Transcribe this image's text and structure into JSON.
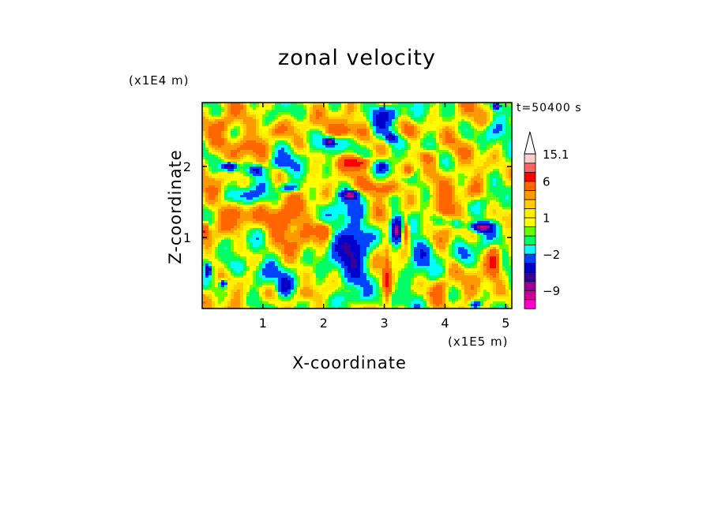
{
  "chart_data": {
    "type": "heatmap",
    "title": "zonal velocity",
    "xlabel": "X-coordinate",
    "ylabel": "Z-coordinate",
    "x_scale_label": "(x1E5 m)",
    "y_scale_label": "(x1E4 m)",
    "time_label": "t=50400 s",
    "xlim": [
      0,
      5.1
    ],
    "ylim": [
      0,
      2.9
    ],
    "x_ticks": [
      1,
      2,
      3,
      4,
      5
    ],
    "x_tick_labels": [
      "1",
      "2",
      "3",
      "4",
      "5"
    ],
    "y_ticks": [
      1,
      2
    ],
    "y_tick_labels": [
      "1",
      "2"
    ],
    "colorbar": {
      "levels": [
        -12,
        -10.5,
        -9,
        -7.5,
        -6,
        -4,
        -2,
        -1,
        0,
        0.5,
        1,
        1.5,
        2,
        3,
        6,
        9,
        12,
        15.1
      ],
      "colors": [
        "#ff00cc",
        "#cc0099",
        "#990099",
        "#330099",
        "#0000cc",
        "#0044ff",
        "#00ffff",
        "#00ff66",
        "#66ff00",
        "#ffff00",
        "#ffee00",
        "#ffcc00",
        "#ff9900",
        "#ff6600",
        "#ff0000",
        "#ff6666",
        "#ffcccc"
      ],
      "labels": [
        {
          "value": 15.1,
          "text": "15.1"
        },
        {
          "value": 6,
          "text": "6"
        },
        {
          "value": 1,
          "text": "1"
        },
        {
          "value": -2,
          "text": "−2"
        },
        {
          "value": -9,
          "text": "−9"
        }
      ],
      "extend": "max"
    },
    "features": [
      {
        "x": 2.5,
        "z": 0.8,
        "amp": -6,
        "sx": 0.28,
        "sz": 0.6
      },
      {
        "x": 3.2,
        "z": 1.1,
        "amp": -10,
        "sx": 0.1,
        "sz": 0.18
      },
      {
        "x": 3.35,
        "z": 1.1,
        "amp": 8,
        "sx": 0.07,
        "sz": 0.15
      },
      {
        "x": 3.05,
        "z": 0.4,
        "amp": 5,
        "sx": 0.06,
        "sz": 0.35
      },
      {
        "x": 3.0,
        "z": 1.7,
        "amp": 4,
        "sx": 0.35,
        "sz": 0.12
      },
      {
        "x": 2.45,
        "z": 1.6,
        "amp": -9,
        "sx": 0.13,
        "sz": 0.06
      },
      {
        "x": 2.55,
        "z": 2.05,
        "amp": 7,
        "sx": 0.22,
        "sz": 0.08
      },
      {
        "x": 2.1,
        "z": 2.35,
        "amp": -8,
        "sx": 0.08,
        "sz": 0.06
      },
      {
        "x": 2.2,
        "z": 2.3,
        "amp": -3,
        "sx": 0.3,
        "sz": 0.15
      },
      {
        "x": 2.3,
        "z": 2.5,
        "amp": 3,
        "sx": 0.25,
        "sz": 0.1
      },
      {
        "x": 2.9,
        "z": 2.65,
        "amp": -3,
        "sx": 0.15,
        "sz": 0.25
      },
      {
        "x": 3.1,
        "z": 2.4,
        "amp": -6,
        "sx": 0.08,
        "sz": 0.06
      },
      {
        "x": 3.1,
        "z": 2.75,
        "amp": -4,
        "sx": 0.2,
        "sz": 0.12
      },
      {
        "x": 2.95,
        "z": 2.0,
        "amp": -5,
        "sx": 0.12,
        "sz": 0.08
      },
      {
        "x": 3.4,
        "z": 1.95,
        "amp": 5,
        "sx": 0.1,
        "sz": 0.1
      },
      {
        "x": 0.45,
        "z": 2.0,
        "amp": -9,
        "sx": 0.12,
        "sz": 0.06
      },
      {
        "x": 0.9,
        "z": 1.95,
        "amp": -6,
        "sx": 0.12,
        "sz": 0.07
      },
      {
        "x": 1.45,
        "z": 1.7,
        "amp": -5,
        "sx": 0.15,
        "sz": 0.06
      },
      {
        "x": 1.3,
        "z": 2.05,
        "amp": -3,
        "sx": 0.2,
        "sz": 0.1
      },
      {
        "x": 0.7,
        "z": 1.6,
        "amp": -3,
        "sx": 0.25,
        "sz": 0.1
      },
      {
        "x": 1.3,
        "z": 1.2,
        "amp": 4,
        "sx": 0.35,
        "sz": 0.25
      },
      {
        "x": 2.0,
        "z": 1.1,
        "amp": 5,
        "sx": 0.12,
        "sz": 0.12
      },
      {
        "x": 0.6,
        "z": 1.35,
        "amp": 3,
        "sx": 0.3,
        "sz": 0.15
      },
      {
        "x": 0.9,
        "z": 2.3,
        "amp": 3,
        "sx": 0.3,
        "sz": 0.15
      },
      {
        "x": 0.5,
        "z": 0.6,
        "amp": -3,
        "sx": 0.2,
        "sz": 0.15
      },
      {
        "x": 1.0,
        "z": 0.5,
        "amp": -3,
        "sx": 0.25,
        "sz": 0.18
      },
      {
        "x": 0.35,
        "z": 0.35,
        "amp": -8,
        "sx": 0.05,
        "sz": 0.05
      },
      {
        "x": 0.1,
        "z": 0.55,
        "amp": -7,
        "sx": 0.04,
        "sz": 0.08
      },
      {
        "x": 0.05,
        "z": 1.1,
        "amp": 6,
        "sx": 0.06,
        "sz": 0.1
      },
      {
        "x": 1.35,
        "z": 0.3,
        "amp": -4,
        "sx": 0.1,
        "sz": 0.15
      },
      {
        "x": 1.7,
        "z": 0.2,
        "amp": 3,
        "sx": 0.2,
        "sz": 0.12
      },
      {
        "x": 2.5,
        "z": 0.15,
        "amp": -2.5,
        "sx": 0.25,
        "sz": 0.1
      },
      {
        "x": 4.6,
        "z": 1.15,
        "amp": -10,
        "sx": 0.18,
        "sz": 0.07
      },
      {
        "x": 4.2,
        "z": 1.2,
        "amp": -4,
        "sx": 0.12,
        "sz": 0.08
      },
      {
        "x": 4.0,
        "z": 1.4,
        "amp": 5,
        "sx": 0.15,
        "sz": 0.12
      },
      {
        "x": 4.5,
        "z": 1.65,
        "amp": 3,
        "sx": 0.2,
        "sz": 0.15
      },
      {
        "x": 4.8,
        "z": 0.65,
        "amp": 6,
        "sx": 0.1,
        "sz": 0.2
      },
      {
        "x": 4.3,
        "z": 0.75,
        "amp": -3,
        "sx": 0.15,
        "sz": 0.15
      },
      {
        "x": 4.5,
        "z": 0.05,
        "amp": -7,
        "sx": 0.08,
        "sz": 0.05
      },
      {
        "x": 3.9,
        "z": 0.3,
        "amp": 4,
        "sx": 0.15,
        "sz": 0.15
      },
      {
        "x": 3.6,
        "z": 0.8,
        "amp": -3,
        "sx": 0.2,
        "sz": 0.2
      },
      {
        "x": 4.8,
        "z": 2.5,
        "amp": -3,
        "sx": 0.25,
        "sz": 0.15
      },
      {
        "x": 4.85,
        "z": 2.85,
        "amp": -9,
        "sx": 0.06,
        "sz": 0.05
      },
      {
        "x": 3.4,
        "z": 2.5,
        "amp": 4,
        "sx": 0.15,
        "sz": 0.12
      },
      {
        "x": 1.6,
        "z": 2.6,
        "amp": 3,
        "sx": 0.25,
        "sz": 0.15
      },
      {
        "x": 0.3,
        "z": 2.6,
        "amp": 3,
        "sx": 0.2,
        "sz": 0.12
      },
      {
        "x": 1.2,
        "z": 2.5,
        "amp": 2,
        "sx": 0.2,
        "sz": 0.1
      },
      {
        "x": 3.7,
        "z": 2.15,
        "amp": 3,
        "sx": 0.18,
        "sz": 0.1
      }
    ],
    "noise_amplitude": 1.8
  }
}
